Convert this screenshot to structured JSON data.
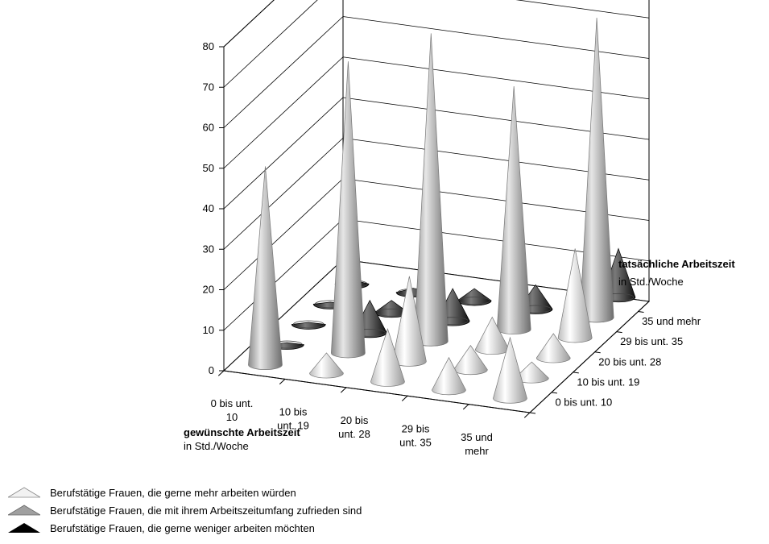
{
  "chart_data": {
    "type": "3d-cone",
    "y_ticks": [
      "0",
      "10",
      "20",
      "30",
      "40",
      "50",
      "60",
      "70",
      "80"
    ],
    "ylim": [
      0,
      80
    ],
    "x_categories": [
      "0 bis unt.\n10",
      "10 bis\nunt. 19",
      "20 bis\nunt. 28",
      "29 bis\nunt. 35",
      "35 und\nmehr"
    ],
    "x_title": "gewünschte Arbeitszeit",
    "x_title_sub": "in Std./Woche",
    "z_categories": [
      "0 bis unt. 10",
      "10 bis unt. 19",
      "20 bis unt. 28",
      "29 bis unt. 35",
      "35 und mehr"
    ],
    "z_title": "tatsächliche Arbeitszeit",
    "z_title_sub": "in Std./Woche",
    "series": [
      {
        "name": "Berufstätige Frauen, die gerne mehr arbeiten würden",
        "color": "#e4e4e4",
        "points": [
          {
            "x": 1,
            "z": 0,
            "value": 5
          },
          {
            "x": 2,
            "z": 0,
            "value": 13
          },
          {
            "x": 3,
            "z": 0,
            "value": 8
          },
          {
            "x": 4,
            "z": 0,
            "value": 15
          },
          {
            "x": 2,
            "z": 1,
            "value": 21
          },
          {
            "x": 3,
            "z": 1,
            "value": 6
          },
          {
            "x": 4,
            "z": 1,
            "value": 4
          },
          {
            "x": 2,
            "z": 2,
            "value": 17
          },
          {
            "x": 3,
            "z": 2,
            "value": 8
          },
          {
            "x": 4,
            "z": 2,
            "value": 6
          },
          {
            "x": 4,
            "z": 3,
            "value": 22
          },
          {
            "x": 4,
            "z": 4,
            "value": 20
          }
        ]
      },
      {
        "name": "Berufstätige Frauen, die mit ihrem Arbeitszeitumfang zufrieden sind",
        "color": "#a8a8a8",
        "points": [
          {
            "x": 0,
            "z": 0,
            "value": 49
          },
          {
            "x": 1,
            "z": 1,
            "value": 72
          },
          {
            "x": 2,
            "z": 2,
            "value": 76
          },
          {
            "x": 3,
            "z": 3,
            "value": 60
          },
          {
            "x": 4,
            "z": 4,
            "value": 74
          }
        ]
      },
      {
        "name": "Berufstätige Frauen, die gerne weniger arbeiten möchten",
        "color": "#202020",
        "points": [
          {
            "x": 0,
            "z": 1,
            "value": 0.5
          },
          {
            "x": 0,
            "z": 2,
            "value": 0.5
          },
          {
            "x": 0,
            "z": 3,
            "value": 0.5
          },
          {
            "x": 0,
            "z": 4,
            "value": 1
          },
          {
            "x": 1,
            "z": 2,
            "value": 8
          },
          {
            "x": 1,
            "z": 3,
            "value": 3
          },
          {
            "x": 1,
            "z": 4,
            "value": 1
          },
          {
            "x": 2,
            "z": 3,
            "value": 8
          },
          {
            "x": 2,
            "z": 4,
            "value": 3
          },
          {
            "x": 3,
            "z": 4,
            "value": 6
          },
          {
            "x": 4,
            "z": 5,
            "value": 12
          }
        ]
      }
    ]
  }
}
